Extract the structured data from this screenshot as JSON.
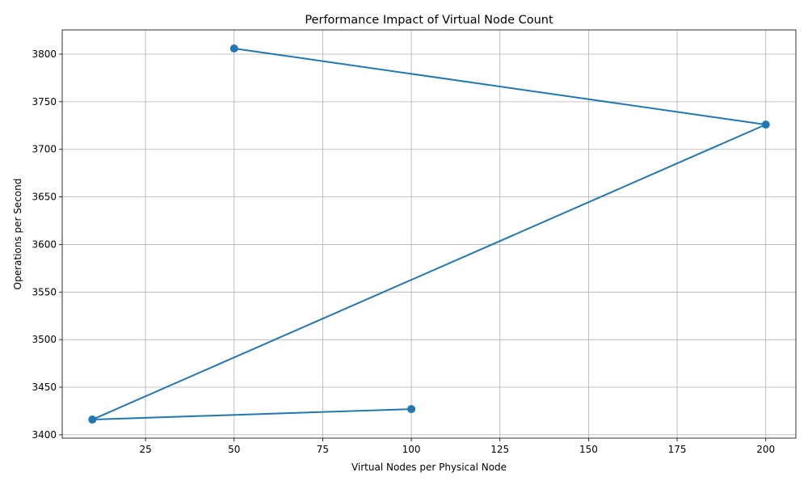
{
  "chart_data": {
    "type": "line",
    "title": "Performance Impact of Virtual Node Count",
    "xlabel": "Virtual Nodes per Physical Node",
    "ylabel": "Operations per Second",
    "x": [
      50,
      200,
      10,
      100
    ],
    "series": [
      {
        "values": [
          3806,
          3726,
          3416,
          3427
        ]
      }
    ],
    "xlim": [
      1.5,
      208.5
    ],
    "ylim": [
      3396.5,
      3825.5
    ],
    "xticks": [
      25,
      50,
      75,
      100,
      125,
      150,
      175,
      200
    ],
    "yticks": [
      3400,
      3450,
      3500,
      3550,
      3600,
      3650,
      3700,
      3750,
      3800
    ],
    "grid": true,
    "color": "#1f77b4"
  }
}
